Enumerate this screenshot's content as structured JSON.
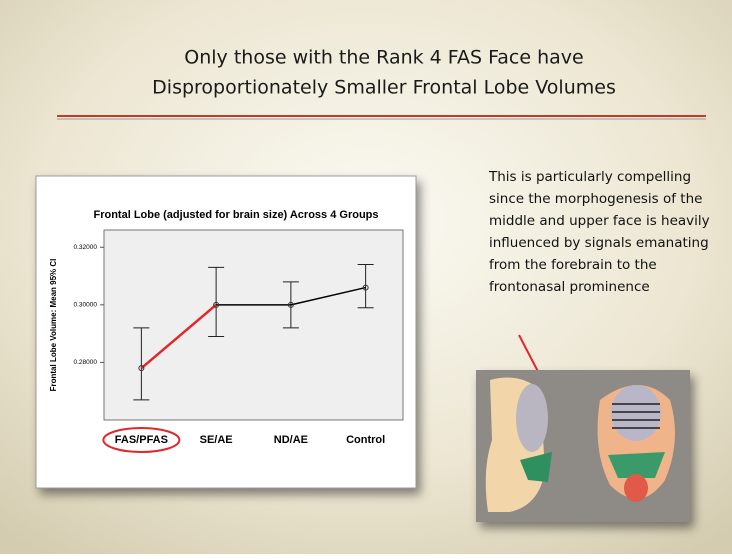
{
  "slide": {
    "title_lines": [
      "Only those with the Rank 4 FAS Face have",
      "Disproportionately Smaller Frontal Lobe Volumes"
    ],
    "note_lines": [
      "This is particularly compelling",
      "since the morphogenesis of the",
      "middle and upper face is heavily",
      "influenced by signals emanating",
      "from the forebrain to the",
      "frontonasal prominence"
    ]
  },
  "chart_data": {
    "type": "errorbar",
    "title": "Frontal Lobe (adjusted for brain size) Across 4 Groups",
    "y_label": "Frontal Lobe Volume: Mean 95% CI",
    "categories": [
      "FAS/PFAS",
      "SE/AE",
      "ND/AE",
      "Control"
    ],
    "series": [
      {
        "values": [
          0.278,
          0.3,
          0.3,
          0.306
        ],
        "lower": [
          0.267,
          0.289,
          0.292,
          0.299
        ],
        "upper": [
          0.292,
          0.313,
          0.308,
          0.314
        ],
        "color": "#000000",
        "highlight_color": "#e3262b",
        "highlight_segments": [
          0
        ]
      }
    ],
    "ylim": [
      0.26,
      0.326
    ],
    "yticks": [
      {
        "value": 0.28,
        "label": "0.28000"
      },
      {
        "value": 0.3,
        "label": "0.30000"
      },
      {
        "value": 0.32,
        "label": "0.32000"
      }
    ],
    "circled_category": 0
  }
}
